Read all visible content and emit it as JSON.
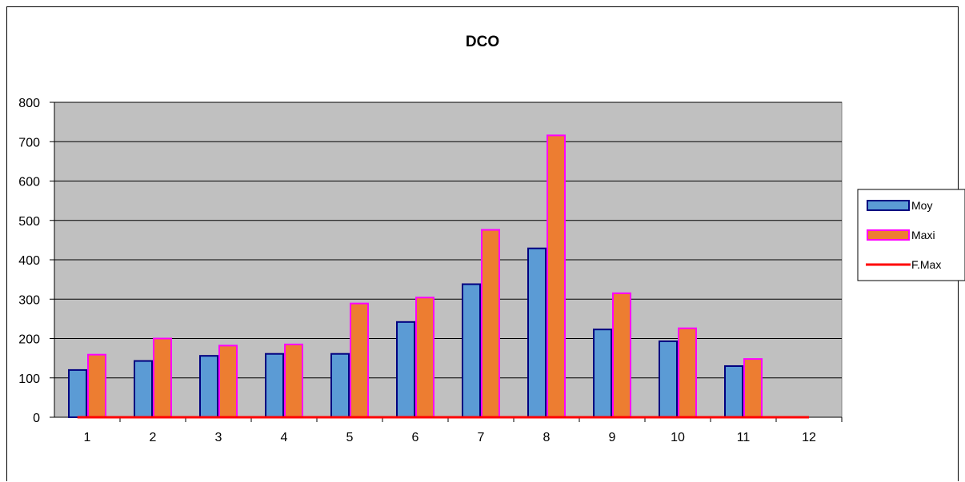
{
  "chart_data": {
    "type": "bar",
    "title": "DCO",
    "categories": [
      "1",
      "2",
      "3",
      "4",
      "5",
      "6",
      "7",
      "8",
      "9",
      "10",
      "11",
      "12"
    ],
    "series": [
      {
        "name": "Moy",
        "type": "bar",
        "values": [
          120,
          143,
          156,
          161,
          161,
          242,
          338,
          429,
          223,
          193,
          130,
          0
        ],
        "color": "#5b9bd5",
        "border": "#000080"
      },
      {
        "name": "Maxi",
        "type": "bar",
        "values": [
          159,
          200,
          182,
          185,
          289,
          304,
          476,
          716,
          315,
          226,
          148,
          0
        ],
        "color": "#ed7d31",
        "border": "#ff00ff"
      },
      {
        "name": "F.Max",
        "type": "line",
        "values": [
          0,
          0,
          0,
          0,
          0,
          0,
          0,
          0,
          0,
          0,
          0,
          0
        ],
        "color": "#ff0000"
      }
    ],
    "ylim": [
      0,
      800
    ],
    "yticks": [
      "0",
      "100",
      "200",
      "300",
      "400",
      "500",
      "600",
      "700",
      "800"
    ],
    "grid": true,
    "plot_background": "#c0c0c0",
    "legend_position": "right"
  }
}
